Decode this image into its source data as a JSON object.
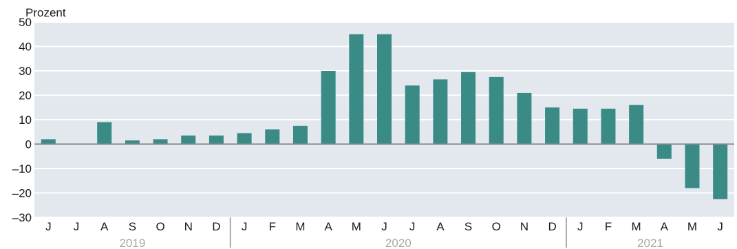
{
  "chart_data": {
    "type": "bar",
    "unit_label": "Prozent",
    "ylim": [
      -30,
      50
    ],
    "yticks": [
      50,
      40,
      30,
      20,
      10,
      0,
      -10,
      -20,
      -30
    ],
    "grid": true,
    "colors": {
      "bar": "#3a8b86",
      "plot_bg": "#e2e8ed",
      "grid": "#ffffff",
      "zero_line": "#888888",
      "year_separator": "#a8a8a8"
    },
    "categories": [
      "J",
      "J",
      "A",
      "S",
      "O",
      "N",
      "D",
      "J",
      "F",
      "M",
      "A",
      "M",
      "J",
      "J",
      "A",
      "S",
      "O",
      "N",
      "D",
      "J",
      "F",
      "M",
      "A",
      "M",
      "J"
    ],
    "values": [
      2,
      0,
      9,
      1.5,
      2,
      3.5,
      3.5,
      4.5,
      6,
      7.5,
      30,
      45,
      45,
      24,
      26.5,
      29.5,
      27.5,
      21,
      15,
      14.5,
      14.5,
      16,
      -6,
      -18,
      -22.5
    ],
    "year_groups": [
      {
        "label": "2019",
        "start": 0,
        "end": 6
      },
      {
        "label": "2020",
        "start": 7,
        "end": 18
      },
      {
        "label": "2021",
        "start": 19,
        "end": 24
      }
    ]
  }
}
